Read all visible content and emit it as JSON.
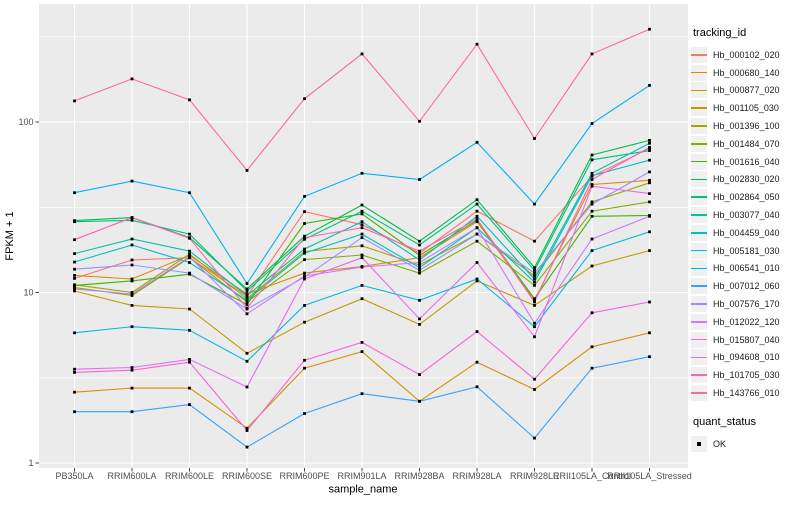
{
  "figure": {
    "background": "#FFFFFF",
    "panel_bg": "#EBEBEB",
    "grid_color": "#FFFFFF",
    "axis_text_color": "#4D4D4D",
    "tick_color": "#333333",
    "marker_color": "#000000"
  },
  "axes": {
    "x_title": "sample_name",
    "y_title": "FPKM + 1",
    "y_ticks": [
      {
        "label": "100",
        "value": 100
      },
      {
        "label": "10",
        "value": 10
      },
      {
        "label": "1",
        "value": 1
      }
    ]
  },
  "legend": {
    "color_title": "tracking_id",
    "shape_title": "quant_status",
    "shape_items": [
      {
        "label": "OK"
      }
    ]
  },
  "chart_data": {
    "type": "line",
    "title": "",
    "xlabel": "sample_name",
    "ylabel": "FPKM + 1",
    "y_scale": "log10",
    "ylim": [
      1,
      460
    ],
    "grid": "on",
    "legend_position": "right",
    "marker": "small-black-square",
    "categories": [
      "PB350LA",
      "RRIM600LA",
      "RRIM600LE",
      "RRIM600SE",
      "RRIM600PE",
      "RRIM901LA",
      "RRIM928BA",
      "RRIM928LA",
      "RRIM928LE",
      "RRII105LA_Control",
      "RRII105LA_Stressed"
    ],
    "series": [
      {
        "name": "Hb_000102_020",
        "color": "#F8766D",
        "values": [
          12.1,
          15.5,
          16.0,
          9.5,
          29.8,
          25.0,
          17.0,
          30.0,
          20.0,
          48.0,
          70.0
        ]
      },
      {
        "name": "Hb_000680_140",
        "color": "#E58700",
        "values": [
          12.6,
          12.0,
          16.5,
          9.8,
          13.0,
          14.2,
          16.0,
          26.0,
          9.0,
          43.0,
          45.5
        ]
      },
      {
        "name": "Hb_000877_020",
        "color": "#D39200",
        "values": [
          2.6,
          2.75,
          2.75,
          1.6,
          3.6,
          4.5,
          2.3,
          3.9,
          2.7,
          4.8,
          5.8
        ]
      },
      {
        "name": "Hb_001105_030",
        "color": "#C09B00",
        "values": [
          10.2,
          8.4,
          8.0,
          4.4,
          6.7,
          9.2,
          6.5,
          11.7,
          8.4,
          14.3,
          17.6
        ]
      },
      {
        "name": "Hb_001396_100",
        "color": "#A3A500",
        "values": [
          11.1,
          10.0,
          16.8,
          9.2,
          17.4,
          18.8,
          14.5,
          22.0,
          12.5,
          34.0,
          44.0
        ]
      },
      {
        "name": "Hb_001484_070",
        "color": "#7CAE00",
        "values": [
          10.7,
          9.6,
          16.0,
          8.8,
          15.6,
          16.6,
          13.0,
          20.0,
          11.0,
          30.0,
          34.0
        ]
      },
      {
        "name": "Hb_001616_040",
        "color": "#39B600",
        "values": [
          11.0,
          11.7,
          12.8,
          8.5,
          25.4,
          28.9,
          16.5,
          26.5,
          9.2,
          28.0,
          28.3
        ]
      },
      {
        "name": "Hb_002830_020",
        "color": "#00BB4E",
        "values": [
          26.4,
          27.5,
          21.0,
          10.5,
          21.4,
          32.6,
          20.0,
          35.0,
          14.0,
          64.0,
          78.0
        ]
      },
      {
        "name": "Hb_002864_050",
        "color": "#00BF7D",
        "values": [
          26.0,
          26.5,
          22.0,
          10.2,
          20.5,
          30.0,
          19.0,
          33.0,
          13.5,
          60.0,
          68.0
        ]
      },
      {
        "name": "Hb_003077_040",
        "color": "#00C1A3",
        "values": [
          16.9,
          20.6,
          17.5,
          9.6,
          18.0,
          26.0,
          15.5,
          28.0,
          12.0,
          50.0,
          75.0
        ]
      },
      {
        "name": "Hb_004459_040",
        "color": "#00BFC4",
        "values": [
          15.1,
          19.0,
          15.0,
          9.0,
          17.0,
          22.0,
          14.0,
          24.0,
          11.5,
          48.5,
          59.7
        ]
      },
      {
        "name": "Hb_005181_030",
        "color": "#00BAE0",
        "values": [
          5.8,
          6.3,
          6.0,
          3.95,
          8.4,
          11.0,
          9.0,
          12.0,
          6.3,
          17.6,
          22.7
        ]
      },
      {
        "name": "Hb_006541_010",
        "color": "#00B0F6",
        "values": [
          38.5,
          45.0,
          38.5,
          11.3,
          36.6,
          50.0,
          46.0,
          76.0,
          33.0,
          98.0,
          164.0
        ]
      },
      {
        "name": "Hb_007012_060",
        "color": "#35A2FF",
        "values": [
          2.0,
          2.0,
          2.2,
          1.24,
          1.95,
          2.55,
          2.3,
          2.8,
          1.4,
          3.6,
          4.2
        ]
      },
      {
        "name": "Hb_007576_170",
        "color": "#9590FF",
        "values": [
          13.7,
          14.5,
          13.0,
          8.0,
          12.3,
          21.0,
          13.5,
          22.0,
          13.0,
          33.0,
          51.0
        ]
      },
      {
        "name": "Hb_012022_120",
        "color": "#C77CFF",
        "values": [
          10.5,
          9.8,
          16.2,
          7.5,
          12.5,
          14.1,
          15.0,
          24.0,
          6.6,
          20.6,
          28.0
        ]
      },
      {
        "name": "Hb_015807_040",
        "color": "#E76BF3",
        "values": [
          3.55,
          3.63,
          4.05,
          2.79,
          12.0,
          16.0,
          7.0,
          15.0,
          5.5,
          42.0,
          38.0
        ]
      },
      {
        "name": "Hb_094608_010",
        "color": "#FA62DB",
        "values": [
          3.4,
          3.5,
          3.9,
          1.55,
          4.0,
          5.1,
          3.3,
          5.9,
          3.1,
          7.6,
          8.8
        ]
      },
      {
        "name": "Hb_101705_030",
        "color": "#FF62BC",
        "values": [
          20.4,
          27.5,
          20.8,
          8.1,
          21.0,
          24.0,
          17.5,
          27.0,
          8.8,
          46.0,
          71.0
        ]
      },
      {
        "name": "Hb_143766_010",
        "color": "#FF6A98",
        "values": [
          133,
          179,
          135,
          52,
          137,
          251,
          101,
          286,
          80,
          251,
          350
        ]
      }
    ]
  }
}
